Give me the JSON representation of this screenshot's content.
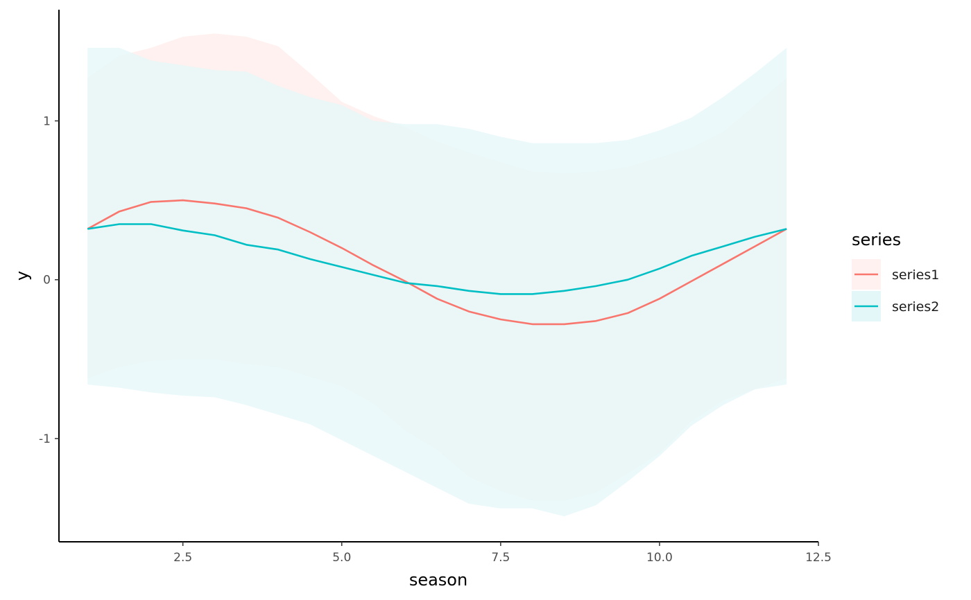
{
  "chart_data": {
    "type": "line",
    "title": "",
    "xlabel": "season",
    "ylabel": "y",
    "xlim": [
      0.55,
      12.5
    ],
    "ylim": [
      -1.65,
      1.7
    ],
    "xticks": [
      2.5,
      5.0,
      7.5,
      10.0,
      12.5
    ],
    "xtick_labels": [
      "2.5",
      "5.0",
      "7.5",
      "10.0",
      "12.5"
    ],
    "yticks": [
      -1,
      0,
      1
    ],
    "ytick_labels": [
      "-1",
      "0",
      "1"
    ],
    "grid": false,
    "legend": {
      "title": "series",
      "position": "right"
    },
    "series": [
      {
        "name": "series1",
        "color": "#F8766D",
        "band_fill": "#FFF1EF",
        "x": [
          1.0,
          1.5,
          2.0,
          2.5,
          3.0,
          3.5,
          4.0,
          4.5,
          5.0,
          5.5,
          6.0,
          6.5,
          7.0,
          7.5,
          8.0,
          8.5,
          9.0,
          9.5,
          10.0,
          10.5,
          11.0,
          11.5,
          12.0
        ],
        "y": [
          0.32,
          0.43,
          0.49,
          0.5,
          0.48,
          0.45,
          0.39,
          0.3,
          0.2,
          0.09,
          -0.01,
          -0.12,
          -0.2,
          -0.25,
          -0.28,
          -0.28,
          -0.26,
          -0.21,
          -0.12,
          -0.01,
          0.1,
          0.21,
          0.32
        ],
        "lower": [
          -0.62,
          -0.55,
          -0.51,
          -0.5,
          -0.5,
          -0.53,
          -0.55,
          -0.61,
          -0.67,
          -0.78,
          -0.95,
          -1.07,
          -1.24,
          -1.33,
          -1.39,
          -1.39,
          -1.34,
          -1.22,
          -1.09,
          -0.89,
          -0.76,
          -0.69,
          -0.62
        ],
        "upper": [
          1.27,
          1.41,
          1.46,
          1.53,
          1.55,
          1.53,
          1.47,
          1.3,
          1.12,
          1.03,
          0.96,
          0.87,
          0.8,
          0.74,
          0.68,
          0.67,
          0.68,
          0.71,
          0.77,
          0.83,
          0.93,
          1.1,
          1.27
        ]
      },
      {
        "name": "series2",
        "color": "#00BFC4",
        "band_fill": "#E4F7F8",
        "x": [
          1.0,
          1.5,
          2.0,
          2.5,
          3.0,
          3.5,
          4.0,
          4.5,
          5.0,
          5.5,
          6.0,
          6.5,
          7.0,
          7.5,
          8.0,
          8.5,
          9.0,
          9.5,
          10.0,
          10.5,
          11.0,
          11.5,
          12.0
        ],
        "y": [
          0.32,
          0.35,
          0.35,
          0.31,
          0.28,
          0.22,
          0.19,
          0.13,
          0.08,
          0.03,
          -0.02,
          -0.04,
          -0.07,
          -0.09,
          -0.09,
          -0.07,
          -0.04,
          0.0,
          0.07,
          0.15,
          0.21,
          0.27,
          0.32
        ],
        "lower": [
          -0.66,
          -0.68,
          -0.71,
          -0.73,
          -0.74,
          -0.79,
          -0.85,
          -0.91,
          -1.01,
          -1.11,
          -1.21,
          -1.31,
          -1.41,
          -1.44,
          -1.44,
          -1.49,
          -1.42,
          -1.27,
          -1.11,
          -0.92,
          -0.79,
          -0.69,
          -0.66
        ],
        "upper": [
          1.46,
          1.46,
          1.38,
          1.35,
          1.32,
          1.31,
          1.22,
          1.15,
          1.1,
          1.0,
          0.98,
          0.98,
          0.95,
          0.9,
          0.86,
          0.86,
          0.86,
          0.88,
          0.94,
          1.02,
          1.15,
          1.3,
          1.46
        ]
      }
    ]
  }
}
